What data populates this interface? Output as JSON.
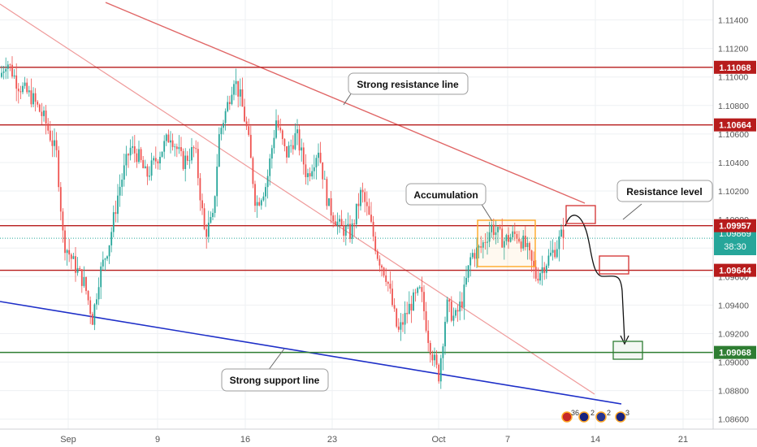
{
  "chart_data": {
    "type": "candlestick",
    "x_ticks": [
      "Sep",
      "9",
      "16",
      "23",
      "Oct",
      "7",
      "14",
      "21"
    ],
    "y_ticks": [
      "1.11400",
      "1.11200",
      "1.11000",
      "1.10800",
      "1.10600",
      "1.10400",
      "1.10200",
      "1.10000",
      "1.09800",
      "1.09600",
      "1.09400",
      "1.09200",
      "1.09000",
      "1.08800",
      "1.08600"
    ],
    "ylim": [
      1.0853,
      1.1154
    ],
    "grid": true,
    "current_price": {
      "value": "1.09869",
      "timer": "38:30",
      "price": 1.09869
    },
    "levels": [
      {
        "value": 1.11068,
        "label": "1.11068",
        "color": "#b71c1c"
      },
      {
        "value": 1.10664,
        "label": "1.10664",
        "color": "#b71c1c"
      },
      {
        "value": 1.09957,
        "label": "1.09957",
        "color": "#b71c1c"
      },
      {
        "value": 1.09644,
        "label": "1.09644",
        "color": "#b71c1c"
      },
      {
        "value": 1.09068,
        "label": "1.09068",
        "color": "#2e7d32"
      }
    ],
    "annotations": {
      "strong_resistance": "Strong resistance line",
      "accumulation": "Accumulation",
      "resistance_level": "Resistance level",
      "strong_support": "Strong support line"
    },
    "event_badges": [
      "36",
      "2",
      "2",
      "3"
    ],
    "colors": {
      "up": "#26a69a",
      "down": "#ef5350",
      "resistance": "#b71c1c",
      "support_level": "#2e7d32",
      "support_trend": "#1e2fc8",
      "accumulation_box": "#ffa726",
      "trend": "#e57373"
    }
  }
}
